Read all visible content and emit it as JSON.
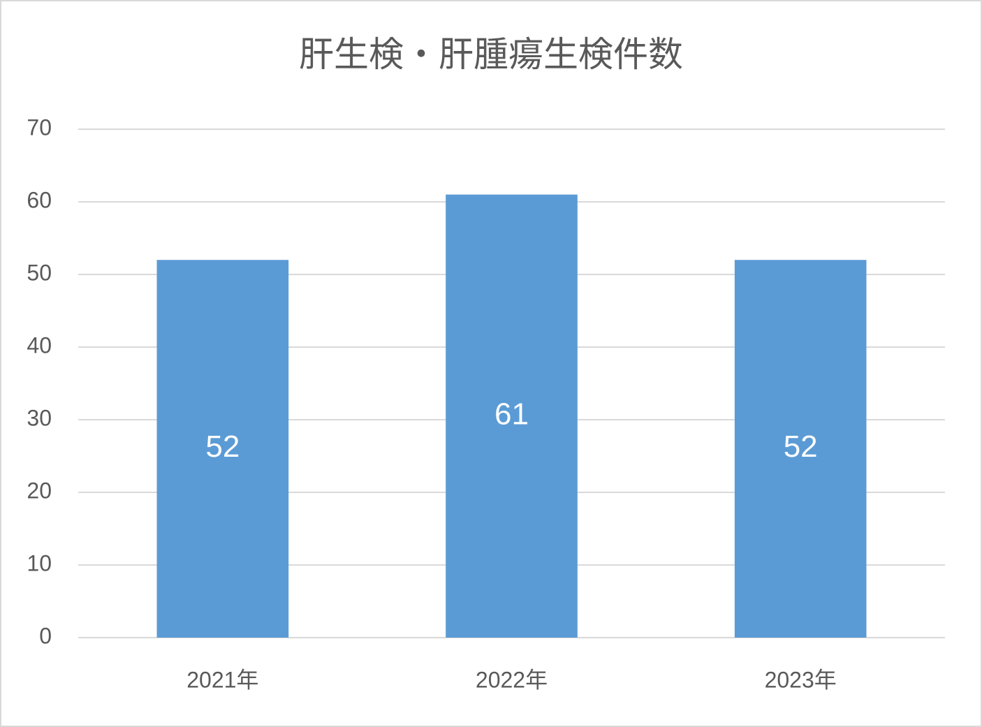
{
  "chart_data": {
    "type": "bar",
    "title": "肝生検・肝腫瘍生検件数",
    "categories": [
      "2021年",
      "2022年",
      "2023年"
    ],
    "values": [
      52,
      61,
      52
    ],
    "color": "#5b9bd5",
    "ylim": [
      0,
      70
    ],
    "yticks": [
      0,
      10,
      20,
      30,
      40,
      50,
      60,
      70
    ],
    "grid": true,
    "data_labels": true
  }
}
